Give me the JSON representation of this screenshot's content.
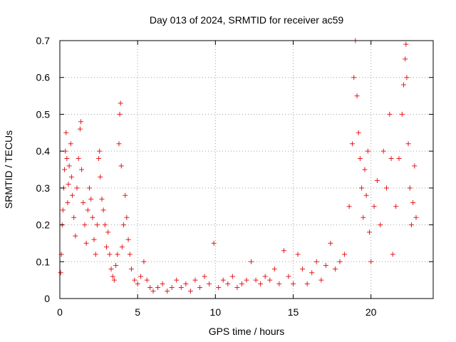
{
  "chart_data": {
    "type": "scatter",
    "title": "Day 013 of 2024, SRMTID for receiver ac59",
    "xlabel": "GPS time / hours",
    "ylabel": "SRMTID / TECUs",
    "xlim": [
      0,
      24
    ],
    "ylim": [
      0,
      0.7
    ],
    "x_ticks": [
      0,
      5,
      10,
      15,
      20
    ],
    "x_tick_labels": [
      "0",
      "5",
      "10",
      "15",
      "20"
    ],
    "y_ticks": [
      0,
      0.1,
      0.2,
      0.3,
      0.4,
      0.5,
      0.6,
      0.7
    ],
    "y_tick_labels": [
      "0",
      "0.1",
      "0.2",
      "0.3",
      "0.4",
      "0.5",
      "0.6",
      "0.7"
    ],
    "grid": true,
    "marker": "plus",
    "color": "#e41a1c",
    "series": [
      {
        "name": "SRMTID",
        "points": [
          [
            0.05,
            0.07
          ],
          [
            0.1,
            0.12
          ],
          [
            0.15,
            0.2
          ],
          [
            0.2,
            0.24
          ],
          [
            0.25,
            0.3
          ],
          [
            0.3,
            0.35
          ],
          [
            0.35,
            0.4
          ],
          [
            0.4,
            0.45
          ],
          [
            0.45,
            0.38
          ],
          [
            0.5,
            0.26
          ],
          [
            0.55,
            0.31
          ],
          [
            0.6,
            0.36
          ],
          [
            0.7,
            0.42
          ],
          [
            0.75,
            0.33
          ],
          [
            0.8,
            0.28
          ],
          [
            0.9,
            0.22
          ],
          [
            1.0,
            0.17
          ],
          [
            1.1,
            0.3
          ],
          [
            1.2,
            0.38
          ],
          [
            1.3,
            0.46
          ],
          [
            1.35,
            0.48
          ],
          [
            1.4,
            0.35
          ],
          [
            1.5,
            0.26
          ],
          [
            1.6,
            0.2
          ],
          [
            1.7,
            0.15
          ],
          [
            1.8,
            0.24
          ],
          [
            1.9,
            0.3
          ],
          [
            2.0,
            0.27
          ],
          [
            2.1,
            0.22
          ],
          [
            2.2,
            0.16
          ],
          [
            2.3,
            0.12
          ],
          [
            2.4,
            0.2
          ],
          [
            2.5,
            0.38
          ],
          [
            2.55,
            0.4
          ],
          [
            2.6,
            0.33
          ],
          [
            2.7,
            0.27
          ],
          [
            2.8,
            0.24
          ],
          [
            2.9,
            0.2
          ],
          [
            3.0,
            0.14
          ],
          [
            3.1,
            0.18
          ],
          [
            3.2,
            0.12
          ],
          [
            3.3,
            0.08
          ],
          [
            3.4,
            0.06
          ],
          [
            3.5,
            0.05
          ],
          [
            3.6,
            0.09
          ],
          [
            3.7,
            0.12
          ],
          [
            3.8,
            0.42
          ],
          [
            3.85,
            0.5
          ],
          [
            3.9,
            0.53
          ],
          [
            3.95,
            0.36
          ],
          [
            4.0,
            0.14
          ],
          [
            4.1,
            0.2
          ],
          [
            4.2,
            0.28
          ],
          [
            4.3,
            0.22
          ],
          [
            4.4,
            0.16
          ],
          [
            4.5,
            0.12
          ],
          [
            4.6,
            0.08
          ],
          [
            4.8,
            0.05
          ],
          [
            5.0,
            0.04
          ],
          [
            5.2,
            0.06
          ],
          [
            5.4,
            0.1
          ],
          [
            5.6,
            0.05
          ],
          [
            5.8,
            0.03
          ],
          [
            6.0,
            0.02
          ],
          [
            6.3,
            0.03
          ],
          [
            6.6,
            0.04
          ],
          [
            6.9,
            0.02
          ],
          [
            7.2,
            0.03
          ],
          [
            7.5,
            0.05
          ],
          [
            7.8,
            0.03
          ],
          [
            8.1,
            0.04
          ],
          [
            8.4,
            0.02
          ],
          [
            8.7,
            0.05
          ],
          [
            9.0,
            0.03
          ],
          [
            9.3,
            0.06
          ],
          [
            9.6,
            0.04
          ],
          [
            9.9,
            0.15
          ],
          [
            10.2,
            0.03
          ],
          [
            10.5,
            0.05
          ],
          [
            10.8,
            0.04
          ],
          [
            11.1,
            0.06
          ],
          [
            11.4,
            0.03
          ],
          [
            11.7,
            0.04
          ],
          [
            12.0,
            0.05
          ],
          [
            12.3,
            0.1
          ],
          [
            12.6,
            0.05
          ],
          [
            12.9,
            0.04
          ],
          [
            13.2,
            0.06
          ],
          [
            13.5,
            0.05
          ],
          [
            13.8,
            0.08
          ],
          [
            14.1,
            0.04
          ],
          [
            14.4,
            0.13
          ],
          [
            14.7,
            0.06
          ],
          [
            15.0,
            0.04
          ],
          [
            15.3,
            0.12
          ],
          [
            15.6,
            0.08
          ],
          [
            15.9,
            0.04
          ],
          [
            16.2,
            0.07
          ],
          [
            16.5,
            0.1
          ],
          [
            16.8,
            0.05
          ],
          [
            17.1,
            0.09
          ],
          [
            17.4,
            0.15
          ],
          [
            17.7,
            0.08
          ],
          [
            18.0,
            0.1
          ],
          [
            18.3,
            0.12
          ],
          [
            18.6,
            0.25
          ],
          [
            18.8,
            0.42
          ],
          [
            18.9,
            0.6
          ],
          [
            19.0,
            0.7
          ],
          [
            19.1,
            0.55
          ],
          [
            19.2,
            0.45
          ],
          [
            19.3,
            0.38
          ],
          [
            19.4,
            0.3
          ],
          [
            19.5,
            0.22
          ],
          [
            19.6,
            0.35
          ],
          [
            19.7,
            0.28
          ],
          [
            19.8,
            0.4
          ],
          [
            19.9,
            0.18
          ],
          [
            20.0,
            0.1
          ],
          [
            20.2,
            0.25
          ],
          [
            20.4,
            0.32
          ],
          [
            20.6,
            0.2
          ],
          [
            20.8,
            0.4
          ],
          [
            21.0,
            0.3
          ],
          [
            21.2,
            0.5
          ],
          [
            21.3,
            0.38
          ],
          [
            21.4,
            0.12
          ],
          [
            21.6,
            0.25
          ],
          [
            21.8,
            0.38
          ],
          [
            22.0,
            0.5
          ],
          [
            22.1,
            0.58
          ],
          [
            22.2,
            0.65
          ],
          [
            22.25,
            0.69
          ],
          [
            22.3,
            0.6
          ],
          [
            22.4,
            0.42
          ],
          [
            22.5,
            0.3
          ],
          [
            22.6,
            0.2
          ],
          [
            22.7,
            0.26
          ],
          [
            22.8,
            0.36
          ],
          [
            22.9,
            0.22
          ]
        ]
      }
    ]
  }
}
